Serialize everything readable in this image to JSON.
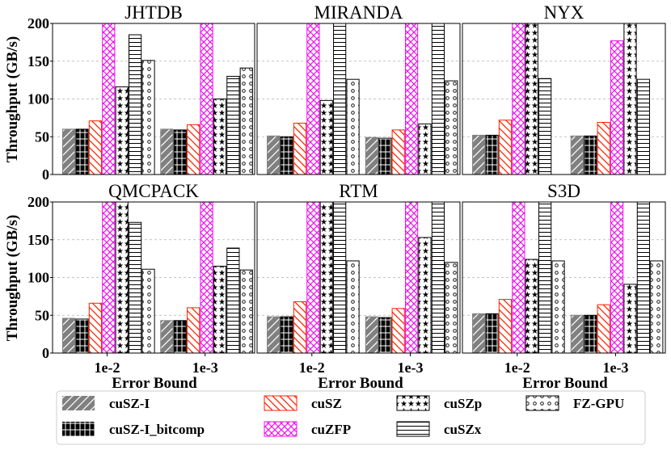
{
  "chart_data": {
    "type": "bar",
    "ylabel": "Throughput (GB/s)",
    "xlabel": "Error Bound",
    "ylim": [
      0,
      200
    ],
    "yticks": [
      0,
      50,
      100,
      150,
      200
    ],
    "categories": [
      "1e-2",
      "1e-3"
    ],
    "series_names": [
      "cuSZ-I",
      "cuSZ-I_bitcomp",
      "cuSZ",
      "cuZFP",
      "cuSZp",
      "cuSZx",
      "FZ-GPU"
    ],
    "grid": "horizontal dashed",
    "legend_position": "bottom",
    "panels": [
      {
        "title": "JHTDB",
        "values": [
          [
            60,
            60
          ],
          [
            60,
            59
          ],
          [
            71,
            66
          ],
          [
            200,
            200
          ],
          [
            116,
            100
          ],
          [
            185,
            130
          ],
          [
            151,
            141
          ]
        ]
      },
      {
        "title": "MIRANDA",
        "values": [
          [
            51,
            49
          ],
          [
            50,
            48
          ],
          [
            68,
            59
          ],
          [
            200,
            200
          ],
          [
            98,
            67
          ],
          [
            200,
            200
          ],
          [
            126,
            124
          ]
        ]
      },
      {
        "title": "NYX",
        "values": [
          [
            52,
            51
          ],
          [
            52,
            51
          ],
          [
            72,
            69
          ],
          [
            200,
            177
          ],
          [
            200,
            200
          ],
          [
            127,
            126
          ],
          [
            0,
            0
          ]
        ]
      },
      {
        "title": "QMCPACK",
        "values": [
          [
            46,
            43
          ],
          [
            45,
            43
          ],
          [
            66,
            60
          ],
          [
            200,
            200
          ],
          [
            200,
            115
          ],
          [
            173,
            139
          ],
          [
            111,
            110
          ]
        ]
      },
      {
        "title": "RTM",
        "values": [
          [
            48,
            48
          ],
          [
            48,
            47
          ],
          [
            68,
            59
          ],
          [
            200,
            200
          ],
          [
            200,
            153
          ],
          [
            200,
            200
          ],
          [
            122,
            120
          ]
        ]
      },
      {
        "title": "S3D",
        "values": [
          [
            52,
            50
          ],
          [
            52,
            50
          ],
          [
            71,
            64
          ],
          [
            200,
            200
          ],
          [
            124,
            91
          ],
          [
            200,
            200
          ],
          [
            122,
            122
          ]
        ]
      }
    ]
  },
  "colors": {
    "cuSZ-I": "#808080",
    "cuSZ-I_bitcomp": "#000000",
    "cuSZ": "#ff2200",
    "cuZFP": "#ee11ee",
    "cuSZp": "#000000",
    "cuSZx": "#000000",
    "FZ-GPU": "#000000"
  }
}
